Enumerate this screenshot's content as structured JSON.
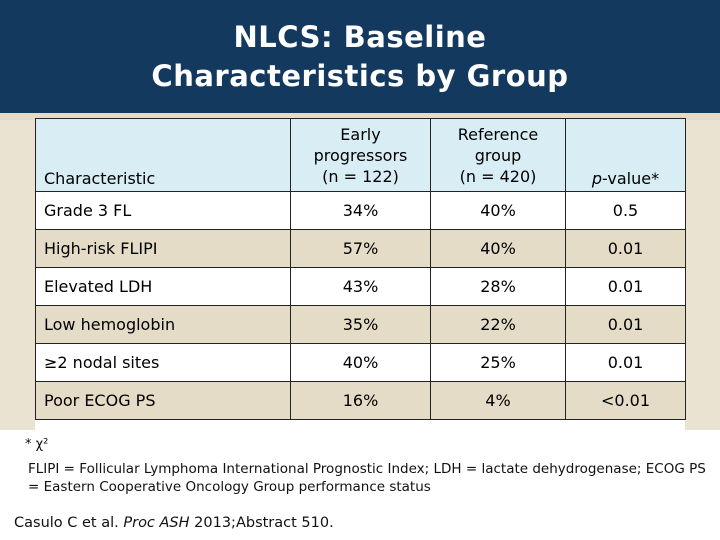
{
  "title": {
    "line1": "NLCS: Baseline",
    "line2": "Characteristics by Group"
  },
  "table": {
    "headers": {
      "characteristic": "Characteristic",
      "early": [
        "Early",
        "progressors",
        "(n = 122)"
      ],
      "reference": [
        "Reference",
        "group",
        "(n = 420)"
      ],
      "pvalue_italic": "p",
      "pvalue_rest": "-value*"
    },
    "rows": [
      {
        "characteristic": "Grade 3 FL",
        "early": "34%",
        "reference": "40%",
        "p": "0.5"
      },
      {
        "characteristic": "High-risk FLIPI",
        "early": "57%",
        "reference": "40%",
        "p": "0.01"
      },
      {
        "characteristic": "Elevated LDH",
        "early": "43%",
        "reference": "28%",
        "p": "0.01"
      },
      {
        "characteristic": "Low hemoglobin",
        "early": "35%",
        "reference": "22%",
        "p": "0.01"
      },
      {
        "characteristic": "≥2 nodal sites",
        "early": "40%",
        "reference": "25%",
        "p": "0.01"
      },
      {
        "characteristic": "Poor ECOG PS",
        "early": "16%",
        "reference": "4%",
        "p": "<0.01"
      }
    ]
  },
  "footnote": "* χ²",
  "abbreviations": "FLIPI = Follicular Lymphoma International Prognostic Index; LDH = lactate dehydrogenase; ECOG PS = Eastern Cooperative Oncology Group performance status",
  "citation": {
    "authors": "Casulo C et al.",
    "journal": "Proc ASH",
    "detail": "2013;Abstract 510."
  }
}
